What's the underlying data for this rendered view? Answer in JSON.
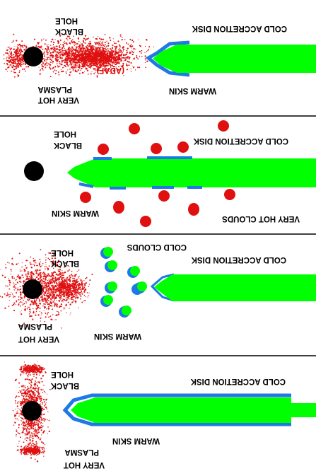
{
  "colors": {
    "background": "#ffffff",
    "disk": "#00ff00",
    "skin": "#1e78e6",
    "black_hole": "#000000",
    "plasma": "#e01010",
    "cloud_hot": "#e01010",
    "divider": "#000000"
  },
  "icons": {
    "black_hole": "filled-black-circle",
    "cloud": "filled-circle",
    "plasma": "speckle-dots"
  },
  "panels": [
    {
      "labels": {
        "hole": "HOLE",
        "black": "BLACK",
        "adaf": "(ADAF)",
        "disk": "COLD ACCRETION DISK",
        "plasma": "PLASMA",
        "very_hot": "VERY HOT",
        "warm_skin": "WARM SKIN"
      }
    },
    {
      "labels": {
        "hole": "HOLE",
        "black": "BLACK",
        "disk": "COLD ACCRETION DISK",
        "warm_skin": "WARM SKIN",
        "clouds": "VERY HOT CLOUDS"
      }
    },
    {
      "labels": {
        "hole": "HOLE",
        "black": "BLACK",
        "cold_clouds": "COLD CLOUDS",
        "disk": "COLD ACCRETION DISK",
        "plasma": "PLASMA",
        "very_hot": "VERY HOT",
        "warm_skin": "WARM SKIN"
      }
    },
    {
      "labels": {
        "hole": "HOLE",
        "black": "BLACK",
        "disk": "COLD ACCRETION DISK",
        "warm_skin": "WARM SKIN",
        "plasma": "PLASMA",
        "very_hot": "VERY HOT"
      }
    }
  ]
}
